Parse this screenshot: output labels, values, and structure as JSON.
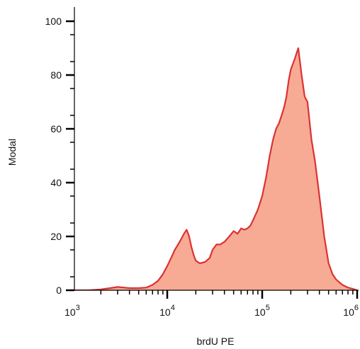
{
  "chart_data": {
    "type": "area",
    "title": "",
    "xlabel": "brdU PE",
    "ylabel": "Modal",
    "x_scale": "log",
    "x_range": [
      700,
      1000000
    ],
    "ylim": [
      0,
      100
    ],
    "y_ticks": [
      0,
      20,
      40,
      60,
      80,
      100
    ],
    "x_tick_labels": [
      {
        "base": "10",
        "exp": "3",
        "value": 1000
      },
      {
        "base": "10",
        "exp": "4",
        "value": 10000
      },
      {
        "base": "10",
        "exp": "5",
        "value": 100000
      },
      {
        "base": "10",
        "exp": "6",
        "value": 1000000
      }
    ],
    "grid": false,
    "fill_color": "#f7ab94",
    "line_color": "#dc3232",
    "series": [
      {
        "x": [
          700,
          750,
          850,
          1000,
          1200,
          1500,
          2000,
          2500,
          3000,
          3500,
          4000,
          5000,
          6000,
          7000,
          8000,
          9000,
          10000,
          11000,
          12000,
          13000,
          14000,
          15000,
          16000,
          17000,
          18000,
          19000,
          20000,
          22000,
          25000,
          28000,
          30000,
          33000,
          36000,
          40000,
          45000,
          50000,
          55000,
          60000,
          65000,
          70000,
          75000,
          80000,
          90000,
          100000,
          110000,
          120000,
          130000,
          140000,
          150000,
          160000,
          170000,
          180000,
          190000,
          200000,
          220000,
          240000,
          260000,
          280000,
          300000,
          330000,
          360000,
          400000,
          450000,
          500000,
          550000,
          600000,
          700000,
          800000,
          900000,
          1000000
        ],
        "y": [
          2,
          1.2,
          0.3,
          0,
          0,
          0,
          0.3,
          0.8,
          1.2,
          1.0,
          0.8,
          0.8,
          1,
          2,
          3.5,
          6,
          9,
          12,
          15,
          17,
          19,
          21,
          22.5,
          20,
          16,
          13,
          11,
          10,
          10.5,
          12,
          15,
          17,
          17,
          18,
          20,
          22,
          21,
          23,
          22.5,
          23,
          24,
          26,
          30,
          35,
          42,
          50,
          56,
          60,
          62,
          65,
          68,
          72,
          78,
          82,
          86,
          90,
          80,
          72,
          70,
          56,
          48,
          35,
          20,
          10,
          6,
          4,
          2,
          1,
          0.5,
          0
        ]
      }
    ]
  }
}
